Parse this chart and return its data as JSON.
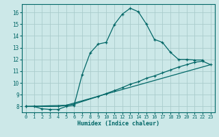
{
  "xlabel": "Humidex (Indice chaleur)",
  "bg_color": "#cce8e8",
  "grid_color": "#aacccc",
  "line_color": "#006666",
  "xlim": [
    -0.5,
    23.5
  ],
  "ylim": [
    7.5,
    16.7
  ],
  "xticks": [
    0,
    1,
    2,
    3,
    4,
    5,
    6,
    7,
    8,
    9,
    10,
    11,
    12,
    13,
    14,
    15,
    16,
    17,
    18,
    19,
    20,
    21,
    22,
    23
  ],
  "yticks": [
    8,
    9,
    10,
    11,
    12,
    13,
    14,
    15,
    16
  ],
  "curve1_x": [
    0,
    1,
    2,
    3,
    4,
    5,
    6,
    7,
    8,
    9,
    10,
    11,
    12,
    13,
    14,
    15,
    16,
    17,
    18,
    19,
    20,
    21,
    22
  ],
  "curve1_y": [
    8.0,
    8.0,
    7.8,
    7.75,
    7.75,
    8.0,
    8.1,
    10.7,
    12.55,
    13.3,
    13.45,
    14.95,
    15.85,
    16.35,
    16.05,
    15.0,
    13.7,
    13.45,
    12.6,
    12.0,
    12.0,
    11.95,
    11.95
  ],
  "curve2_x": [
    0,
    4,
    5,
    6,
    9,
    10,
    11,
    12,
    13,
    14,
    15,
    16,
    17,
    18,
    19,
    20,
    21,
    22,
    23
  ],
  "curve2_y": [
    8.0,
    8.0,
    8.1,
    8.2,
    8.85,
    9.1,
    9.35,
    9.6,
    9.9,
    10.1,
    10.4,
    10.6,
    10.85,
    11.1,
    11.35,
    11.55,
    11.75,
    11.85,
    11.55
  ],
  "curve3_x": [
    0,
    5,
    23
  ],
  "curve3_y": [
    8.0,
    8.1,
    11.55
  ]
}
